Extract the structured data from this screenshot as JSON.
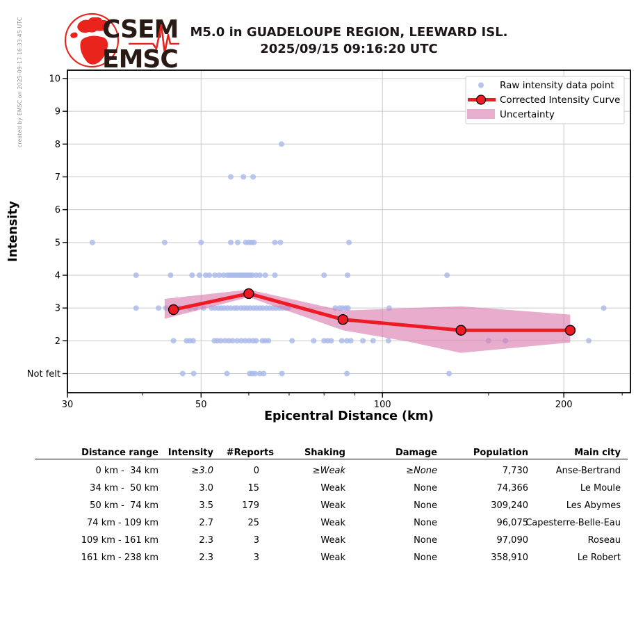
{
  "watermark": "created by EMSC on 2025-09-17 16:33:45 UTC",
  "logo": {
    "line1": "CSEM",
    "line2": "EMSC",
    "red": "#e8241c",
    "text_color": "#2a1a16"
  },
  "header": {
    "title_line1": "M5.0 in GUADELOUPE REGION, LEEWARD ISL.",
    "title_line2": "2025/09/15 09:16:20 UTC"
  },
  "chart_data": {
    "type": "scatter",
    "xlabel": "Epicentral Distance (km)",
    "ylabel": "Intensity",
    "x_scale": "log",
    "xlim": [
      30,
      258
    ],
    "x_ticks": [
      30,
      50,
      100,
      200
    ],
    "x_minor_ticks": [
      40,
      60,
      70,
      80,
      90,
      150,
      250
    ],
    "y_tick_labels": [
      "Not felt",
      "2",
      "3",
      "4",
      "5",
      "6",
      "7",
      "8",
      "9",
      "10"
    ],
    "grid": true,
    "legend_position": "upper right",
    "legend": [
      "Raw intensity data point",
      "Corrected Intensity Curve",
      "Uncertainty"
    ],
    "colors": {
      "raw": "#a8b8ea",
      "curve": "#ee1b24",
      "band": "#d977ab",
      "band_legend": "#e8aecd",
      "grid": "#c8c8c8"
    },
    "raw_points": [
      [
        68,
        8
      ],
      [
        56,
        7
      ],
      [
        58.8,
        7
      ],
      [
        61,
        7
      ],
      [
        33,
        5
      ],
      [
        43.5,
        5
      ],
      [
        50,
        5
      ],
      [
        56,
        5
      ],
      [
        57.5,
        5
      ],
      [
        59.3,
        5
      ],
      [
        60,
        5
      ],
      [
        60.6,
        5
      ],
      [
        61.2,
        5
      ],
      [
        66.3,
        5
      ],
      [
        67.7,
        5
      ],
      [
        88,
        5
      ],
      [
        39,
        4
      ],
      [
        44.5,
        4
      ],
      [
        48.3,
        4
      ],
      [
        49.7,
        4
      ],
      [
        50.9,
        4
      ],
      [
        51.6,
        4
      ],
      [
        52.7,
        4
      ],
      [
        53.6,
        4
      ],
      [
        54.5,
        4
      ],
      [
        55.3,
        4
      ],
      [
        55.8,
        4
      ],
      [
        56.3,
        4
      ],
      [
        56.8,
        4
      ],
      [
        57.3,
        4
      ],
      [
        57.8,
        4
      ],
      [
        58.3,
        4
      ],
      [
        58.8,
        4
      ],
      [
        59.3,
        4
      ],
      [
        59.8,
        4
      ],
      [
        60.3,
        4
      ],
      [
        60.8,
        4
      ],
      [
        61.7,
        4
      ],
      [
        62.6,
        4
      ],
      [
        63.9,
        4
      ],
      [
        66.3,
        4
      ],
      [
        80,
        4
      ],
      [
        87.5,
        4
      ],
      [
        128,
        4
      ],
      [
        39,
        3
      ],
      [
        42.5,
        3
      ],
      [
        43.7,
        3
      ],
      [
        46,
        3
      ],
      [
        47.9,
        3
      ],
      [
        48.9,
        3
      ],
      [
        50.5,
        3
      ],
      [
        52,
        3
      ],
      [
        52.7,
        3
      ],
      [
        53.4,
        3
      ],
      [
        54,
        3
      ],
      [
        54.6,
        3
      ],
      [
        55.3,
        3
      ],
      [
        56,
        3
      ],
      [
        56.8,
        3
      ],
      [
        57.4,
        3
      ],
      [
        58.2,
        3
      ],
      [
        58.9,
        3
      ],
      [
        59.6,
        3
      ],
      [
        60.3,
        3
      ],
      [
        61.1,
        3
      ],
      [
        61.8,
        3
      ],
      [
        62.6,
        3
      ],
      [
        63.3,
        3
      ],
      [
        64.2,
        3
      ],
      [
        65,
        3
      ],
      [
        65.8,
        3
      ],
      [
        66.6,
        3
      ],
      [
        67.5,
        3
      ],
      [
        68.3,
        3
      ],
      [
        69.2,
        3
      ],
      [
        69.8,
        3
      ],
      [
        83.5,
        3
      ],
      [
        84.9,
        3
      ],
      [
        85.8,
        3
      ],
      [
        86.9,
        3
      ],
      [
        87.7,
        3
      ],
      [
        102.6,
        3
      ],
      [
        233,
        3
      ],
      [
        45,
        2
      ],
      [
        47.3,
        2
      ],
      [
        47.9,
        2
      ],
      [
        48.5,
        2
      ],
      [
        52.6,
        2
      ],
      [
        53.2,
        2
      ],
      [
        53.9,
        2
      ],
      [
        54.8,
        2
      ],
      [
        55.6,
        2
      ],
      [
        56.4,
        2
      ],
      [
        57.4,
        2
      ],
      [
        58.3,
        2
      ],
      [
        59.2,
        2
      ],
      [
        60.1,
        2
      ],
      [
        61,
        2
      ],
      [
        61.7,
        2
      ],
      [
        63.2,
        2
      ],
      [
        63.9,
        2
      ],
      [
        64.7,
        2
      ],
      [
        70.8,
        2
      ],
      [
        76.9,
        2
      ],
      [
        80,
        2
      ],
      [
        81.1,
        2
      ],
      [
        82.2,
        2
      ],
      [
        85.6,
        2
      ],
      [
        87.3,
        2
      ],
      [
        88.6,
        2
      ],
      [
        92.8,
        2
      ],
      [
        96.5,
        2
      ],
      [
        102.3,
        2
      ],
      [
        150,
        2
      ],
      [
        160,
        2
      ],
      [
        220,
        2
      ],
      [
        46.6,
        1
      ],
      [
        48.6,
        1
      ],
      [
        55.2,
        1
      ],
      [
        60.2,
        1
      ],
      [
        60.8,
        1
      ],
      [
        61.5,
        1
      ],
      [
        62.6,
        1
      ],
      [
        63.5,
        1
      ],
      [
        68.1,
        1
      ],
      [
        87.3,
        1
      ],
      [
        129,
        1
      ]
    ],
    "corrected_curve": [
      [
        45,
        2.95
      ],
      [
        60,
        3.44
      ],
      [
        86,
        2.65
      ],
      [
        135,
        2.32
      ],
      [
        205,
        2.32
      ]
    ],
    "uncertainty_band": {
      "upper": [
        [
          43.5,
          3.28
        ],
        [
          60,
          3.56
        ],
        [
          86,
          2.92
        ],
        [
          110,
          3.0
        ],
        [
          135,
          3.05
        ],
        [
          205,
          2.8
        ]
      ],
      "lower": [
        [
          43.5,
          2.67
        ],
        [
          60,
          3.33
        ],
        [
          86,
          2.32
        ],
        [
          110,
          1.98
        ],
        [
          135,
          1.63
        ],
        [
          205,
          1.95
        ]
      ]
    }
  },
  "table": {
    "headers": [
      "Distance range",
      "Intensity",
      "#Reports",
      "Shaking",
      "Damage",
      "Population",
      "Main city"
    ],
    "rows": [
      {
        "distance_range": " 0 km -  34 km",
        "intensity": "≥3.0",
        "reports": "0",
        "shaking": "≥Weak",
        "damage": "≥None",
        "population": "7,730",
        "main_city": "Anse-Bertrand",
        "estimated": true
      },
      {
        "distance_range": "34 km -  50 km",
        "intensity": "3.0",
        "reports": "15",
        "shaking": "Weak",
        "damage": "None",
        "population": "74,366",
        "main_city": "Le Moule",
        "estimated": false
      },
      {
        "distance_range": "50 km -  74 km",
        "intensity": "3.5",
        "reports": "179",
        "shaking": "Weak",
        "damage": "None",
        "population": "309,240",
        "main_city": "Les Abymes",
        "estimated": false
      },
      {
        "distance_range": "74 km - 109 km",
        "intensity": "2.7",
        "reports": "25",
        "shaking": "Weak",
        "damage": "None",
        "population": "96,075",
        "main_city": "Capesterre-Belle-Eau",
        "estimated": false
      },
      {
        "distance_range": "109 km - 161 km",
        "intensity": "2.3",
        "reports": "3",
        "shaking": "Weak",
        "damage": "None",
        "population": "97,090",
        "main_city": "Roseau",
        "estimated": false
      },
      {
        "distance_range": "161 km - 238 km",
        "intensity": "2.3",
        "reports": "3",
        "shaking": "Weak",
        "damage": "None",
        "population": "358,910",
        "main_city": "Le Robert",
        "estimated": false
      }
    ]
  }
}
